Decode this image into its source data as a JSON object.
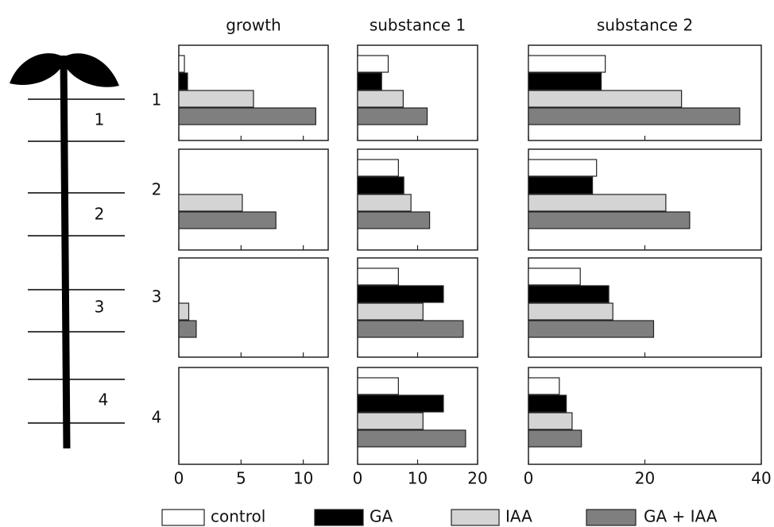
{
  "chart_data": {
    "type": "bar",
    "orientation": "horizontal",
    "rows": [
      "1",
      "2",
      "3",
      "4"
    ],
    "series": [
      {
        "name": "control",
        "color": "#ffffff"
      },
      {
        "name": "GA",
        "color": "#000000"
      },
      {
        "name": "IAA",
        "color": "#d4d4d4"
      },
      {
        "name": "GA + IAA",
        "color": "#7f7f7f"
      }
    ],
    "panels": [
      {
        "title": "growth",
        "xlim": [
          0,
          12
        ],
        "xticks": [
          0,
          5,
          10
        ],
        "series": [
          {
            "values": [
              0.45,
              0,
              0,
              0
            ]
          },
          {
            "values": [
              0.7,
              0,
              0,
              0
            ]
          },
          {
            "values": [
              6.0,
              5.1,
              0.8,
              0
            ]
          },
          {
            "values": [
              11.0,
              7.8,
              1.4,
              0
            ]
          }
        ]
      },
      {
        "title": "substance 1",
        "xlim": [
          0,
          20
        ],
        "xticks": [
          0,
          10,
          20
        ],
        "series": [
          {
            "values": [
              5.1,
              6.8,
              6.8,
              6.8
            ]
          },
          {
            "values": [
              4.0,
              7.7,
              14.3,
              14.3
            ]
          },
          {
            "values": [
              7.6,
              8.9,
              10.9,
              10.9
            ]
          },
          {
            "values": [
              11.6,
              12.0,
              17.6,
              18.0
            ]
          }
        ]
      },
      {
        "title": "substance 2",
        "xlim": [
          0,
          40
        ],
        "xticks": [
          0,
          20,
          40
        ],
        "series": [
          {
            "values": [
              13.2,
              11.7,
              8.9,
              5.3
            ]
          },
          {
            "values": [
              12.5,
              11.0,
              13.8,
              6.5
            ]
          },
          {
            "values": [
              26.3,
              23.6,
              14.5,
              7.5
            ]
          },
          {
            "values": [
              36.3,
              27.7,
              21.5,
              9.1
            ]
          }
        ]
      }
    ]
  },
  "plant": {
    "segments": [
      "1",
      "2",
      "3",
      "4"
    ]
  }
}
